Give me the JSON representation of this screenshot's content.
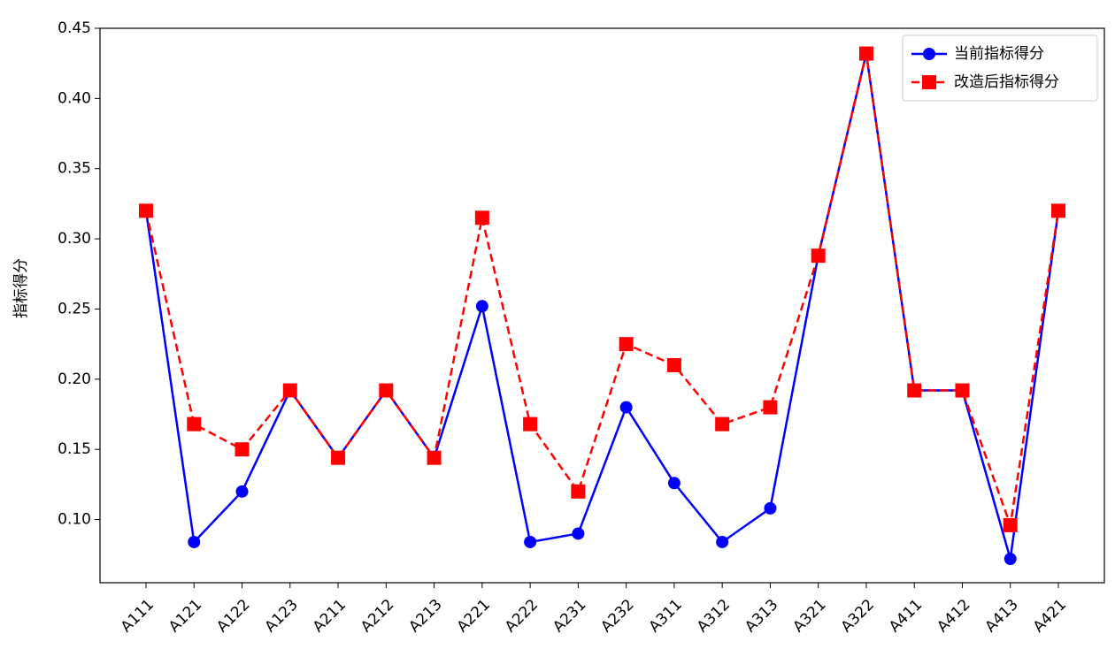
{
  "chart_data": {
    "type": "line",
    "y_label": "指标得分",
    "categories": [
      "A111",
      "A121",
      "A122",
      "A123",
      "A211",
      "A212",
      "A213",
      "A221",
      "A222",
      "A231",
      "A232",
      "A311",
      "A312",
      "A313",
      "A321",
      "A322",
      "A411",
      "A412",
      "A413",
      "A421"
    ],
    "series": [
      {
        "name": "当前指标得分",
        "color": "#0000ff",
        "line_style": "solid",
        "marker": "circle",
        "values": [
          0.32,
          0.084,
          0.12,
          0.192,
          0.144,
          0.192,
          0.144,
          0.252,
          0.084,
          0.09,
          0.18,
          0.126,
          0.084,
          0.108,
          0.288,
          0.432,
          0.192,
          0.192,
          0.072,
          0.32
        ]
      },
      {
        "name": "改造后指标得分",
        "color": "#ff0000",
        "line_style": "dashed",
        "marker": "square",
        "values": [
          0.32,
          0.168,
          0.15,
          0.192,
          0.144,
          0.192,
          0.144,
          0.315,
          0.168,
          0.12,
          0.225,
          0.21,
          0.168,
          0.18,
          0.288,
          0.432,
          0.192,
          0.192,
          0.096,
          0.32
        ]
      }
    ],
    "ylim": [
      0.055,
      0.45
    ],
    "yticks": [
      {
        "value": 0.1,
        "label": "0.10"
      },
      {
        "value": 0.15,
        "label": "0.15"
      },
      {
        "value": 0.2,
        "label": "0.20"
      },
      {
        "value": 0.25,
        "label": "0.25"
      },
      {
        "value": 0.3,
        "label": "0.30"
      },
      {
        "value": 0.35,
        "label": "0.35"
      },
      {
        "value": 0.4,
        "label": "0.40"
      },
      {
        "value": 0.45,
        "label": "0.45"
      }
    ],
    "legend": "upper right",
    "grid": false
  }
}
